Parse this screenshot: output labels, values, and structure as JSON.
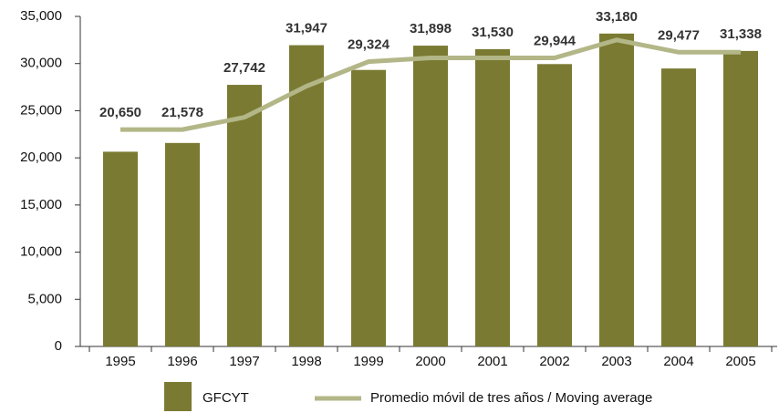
{
  "chart_data": {
    "type": "bar",
    "categories": [
      "1995",
      "1996",
      "1997",
      "1998",
      "1999",
      "2000",
      "2001",
      "2002",
      "2003",
      "2004",
      "2005"
    ],
    "series": [
      {
        "name": "GFCYT",
        "type": "bar",
        "color": "#7a7a32",
        "values": [
          20650,
          21578,
          27742,
          31947,
          29324,
          31898,
          31530,
          29944,
          33180,
          29477,
          31338
        ],
        "value_labels": [
          "20,650",
          "21,578",
          "27,742",
          "31,947",
          "29,324",
          "31,898",
          "31,530",
          "29,944",
          "33,180",
          "29,477",
          "31,338"
        ]
      },
      {
        "name": "Promedio móvil de tres años / Moving average",
        "type": "line",
        "color": "#b3b687",
        "values": [
          23000,
          23000,
          24300,
          27600,
          30200,
          30600,
          30600,
          30600,
          32500,
          31200,
          31200
        ]
      }
    ],
    "ylim": [
      0,
      35000
    ],
    "yticks": [
      0,
      {
        "value": 5000,
        "label": "5,000"
      },
      {
        "value": 10000,
        "label": "10,000"
      },
      {
        "value": 15000,
        "label": "15,000"
      },
      {
        "value": 20000,
        "label": "20,000"
      },
      {
        "value": 25000,
        "label": "25,000"
      },
      {
        "value": 30000,
        "label": "30,000"
      },
      {
        "value": 35000,
        "label": "35,000"
      }
    ]
  }
}
